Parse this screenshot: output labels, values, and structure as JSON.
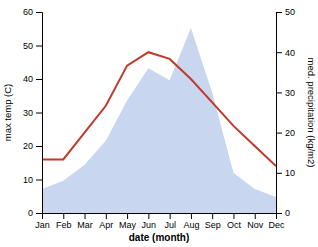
{
  "chart_data": {
    "type": "line",
    "categories": [
      "Jan",
      "Feb",
      "Mar",
      "Apr",
      "May",
      "Jun",
      "Jul",
      "Aug",
      "Sep",
      "Oct",
      "Nov",
      "Dec"
    ],
    "xlabel": "date (month)",
    "ylabel": "max temp (C)",
    "y2label": "med. precipitation (kg/m2)",
    "ylim": [
      0,
      60
    ],
    "yticks": [
      0,
      10,
      20,
      30,
      40,
      50,
      60
    ],
    "y2lim": [
      0,
      50
    ],
    "y2ticks": [
      0,
      10,
      20,
      30,
      40,
      50
    ],
    "series": [
      {
        "type": "area",
        "axis": "y2",
        "color": "#b0c4e8",
        "values": [
          6,
          8,
          12,
          18,
          28,
          36,
          33,
          46,
          30,
          10,
          6,
          4
        ]
      },
      {
        "type": "line",
        "color": "#c0392b",
        "values": [
          16,
          16,
          24,
          32,
          44,
          48,
          46,
          40,
          33,
          26,
          20,
          14
        ]
      }
    ]
  }
}
